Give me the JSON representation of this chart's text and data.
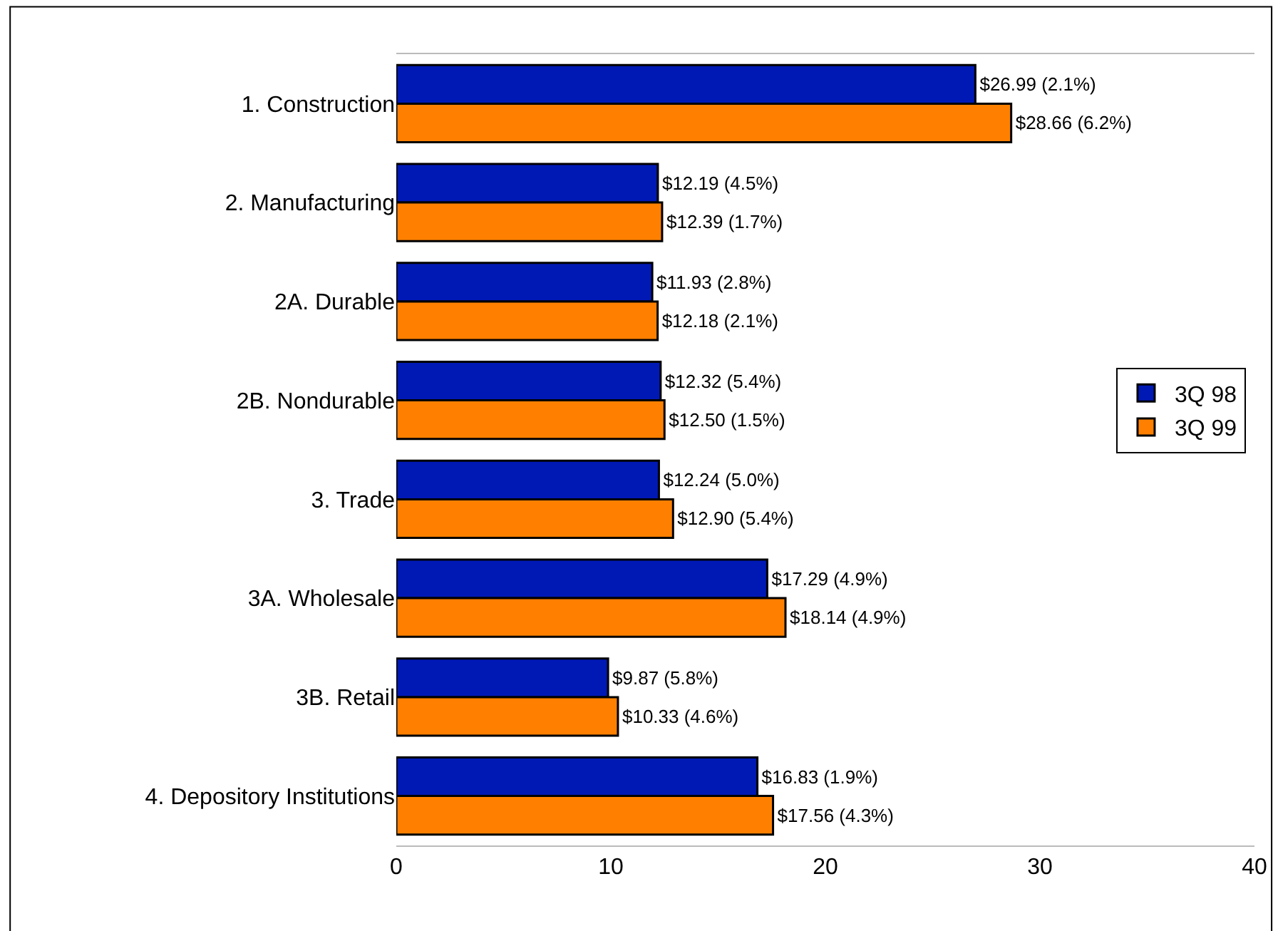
{
  "chart_data": {
    "type": "bar",
    "orientation": "horizontal",
    "categories": [
      "1. Construction",
      "2. Manufacturing",
      "2A. Durable",
      "2B. Nondurable",
      "3. Trade",
      "3A. Wholesale",
      "3B. Retail",
      "4. Depository Institutions"
    ],
    "series": [
      {
        "name": "3Q 98",
        "color": "#0019b5",
        "values": [
          26.99,
          12.19,
          11.93,
          12.32,
          12.24,
          17.29,
          9.87,
          16.83
        ],
        "value_labels": [
          "$26.99 (2.1%)",
          "$12.19 (4.5%)",
          "$11.93 (2.8%)",
          "$12.32 (5.4%)",
          "$12.24 (5.0%)",
          "$17.29 (4.9%)",
          "$9.87 (5.8%)",
          "$16.83 (1.9%)"
        ]
      },
      {
        "name": "3Q 99",
        "color": "#ff8000",
        "values": [
          28.66,
          12.39,
          12.18,
          12.5,
          12.9,
          18.14,
          10.33,
          17.56
        ],
        "value_labels": [
          "$28.66 (6.2%)",
          "$12.39 (1.7%)",
          "$12.18 (2.1%)",
          "$12.50 (1.5%)",
          "$12.90 (5.4%)",
          "$18.14 (4.9%)",
          "$10.33 (4.6%)",
          "$17.56 (4.3%)"
        ]
      }
    ],
    "xlim": [
      0,
      40
    ],
    "xticks": [
      0,
      10,
      20,
      30,
      40
    ],
    "grid": false,
    "legend": "right"
  }
}
